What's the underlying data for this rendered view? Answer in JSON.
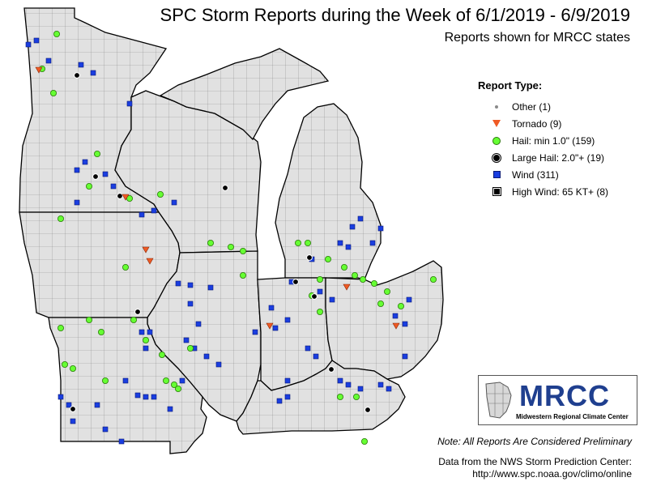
{
  "title": "SPC Storm Reports during the Week of 6/1/2019 - 6/9/2019",
  "subtitle": "Reports shown for MRCC states",
  "legend": {
    "title": "Report Type:",
    "items": [
      {
        "key": "other",
        "label": "Other (1)"
      },
      {
        "key": "tornado",
        "label": "Tornado (9)"
      },
      {
        "key": "hail",
        "label": "Hail: min 1.0\" (159)"
      },
      {
        "key": "large_hail",
        "label": "Large Hail: 2.0\"+ (19)"
      },
      {
        "key": "wind",
        "label": "Wind (311)"
      },
      {
        "key": "high_wind",
        "label": "High Wind: 65 KT+ (8)"
      }
    ]
  },
  "colors": {
    "land": "#e1e1e1",
    "county_lines": "#8c8c8c",
    "state_lines": "#000000",
    "tornado": "#ef5a24",
    "hail": "#66ff33",
    "large_hail": "#000000",
    "wind": "#1a3ee0",
    "high_wind": "#000000",
    "logo_text": "#1f3f8f"
  },
  "logo": {
    "text": "MRCC",
    "subtext": "Midwestern Regional Climate Center"
  },
  "note": "Note: All Reports Are Considered Preliminary",
  "source_line1": "Data from the NWS Storm Prediction Center:",
  "source_line2": "http://www.spc.noaa.gov/climo/online"
}
